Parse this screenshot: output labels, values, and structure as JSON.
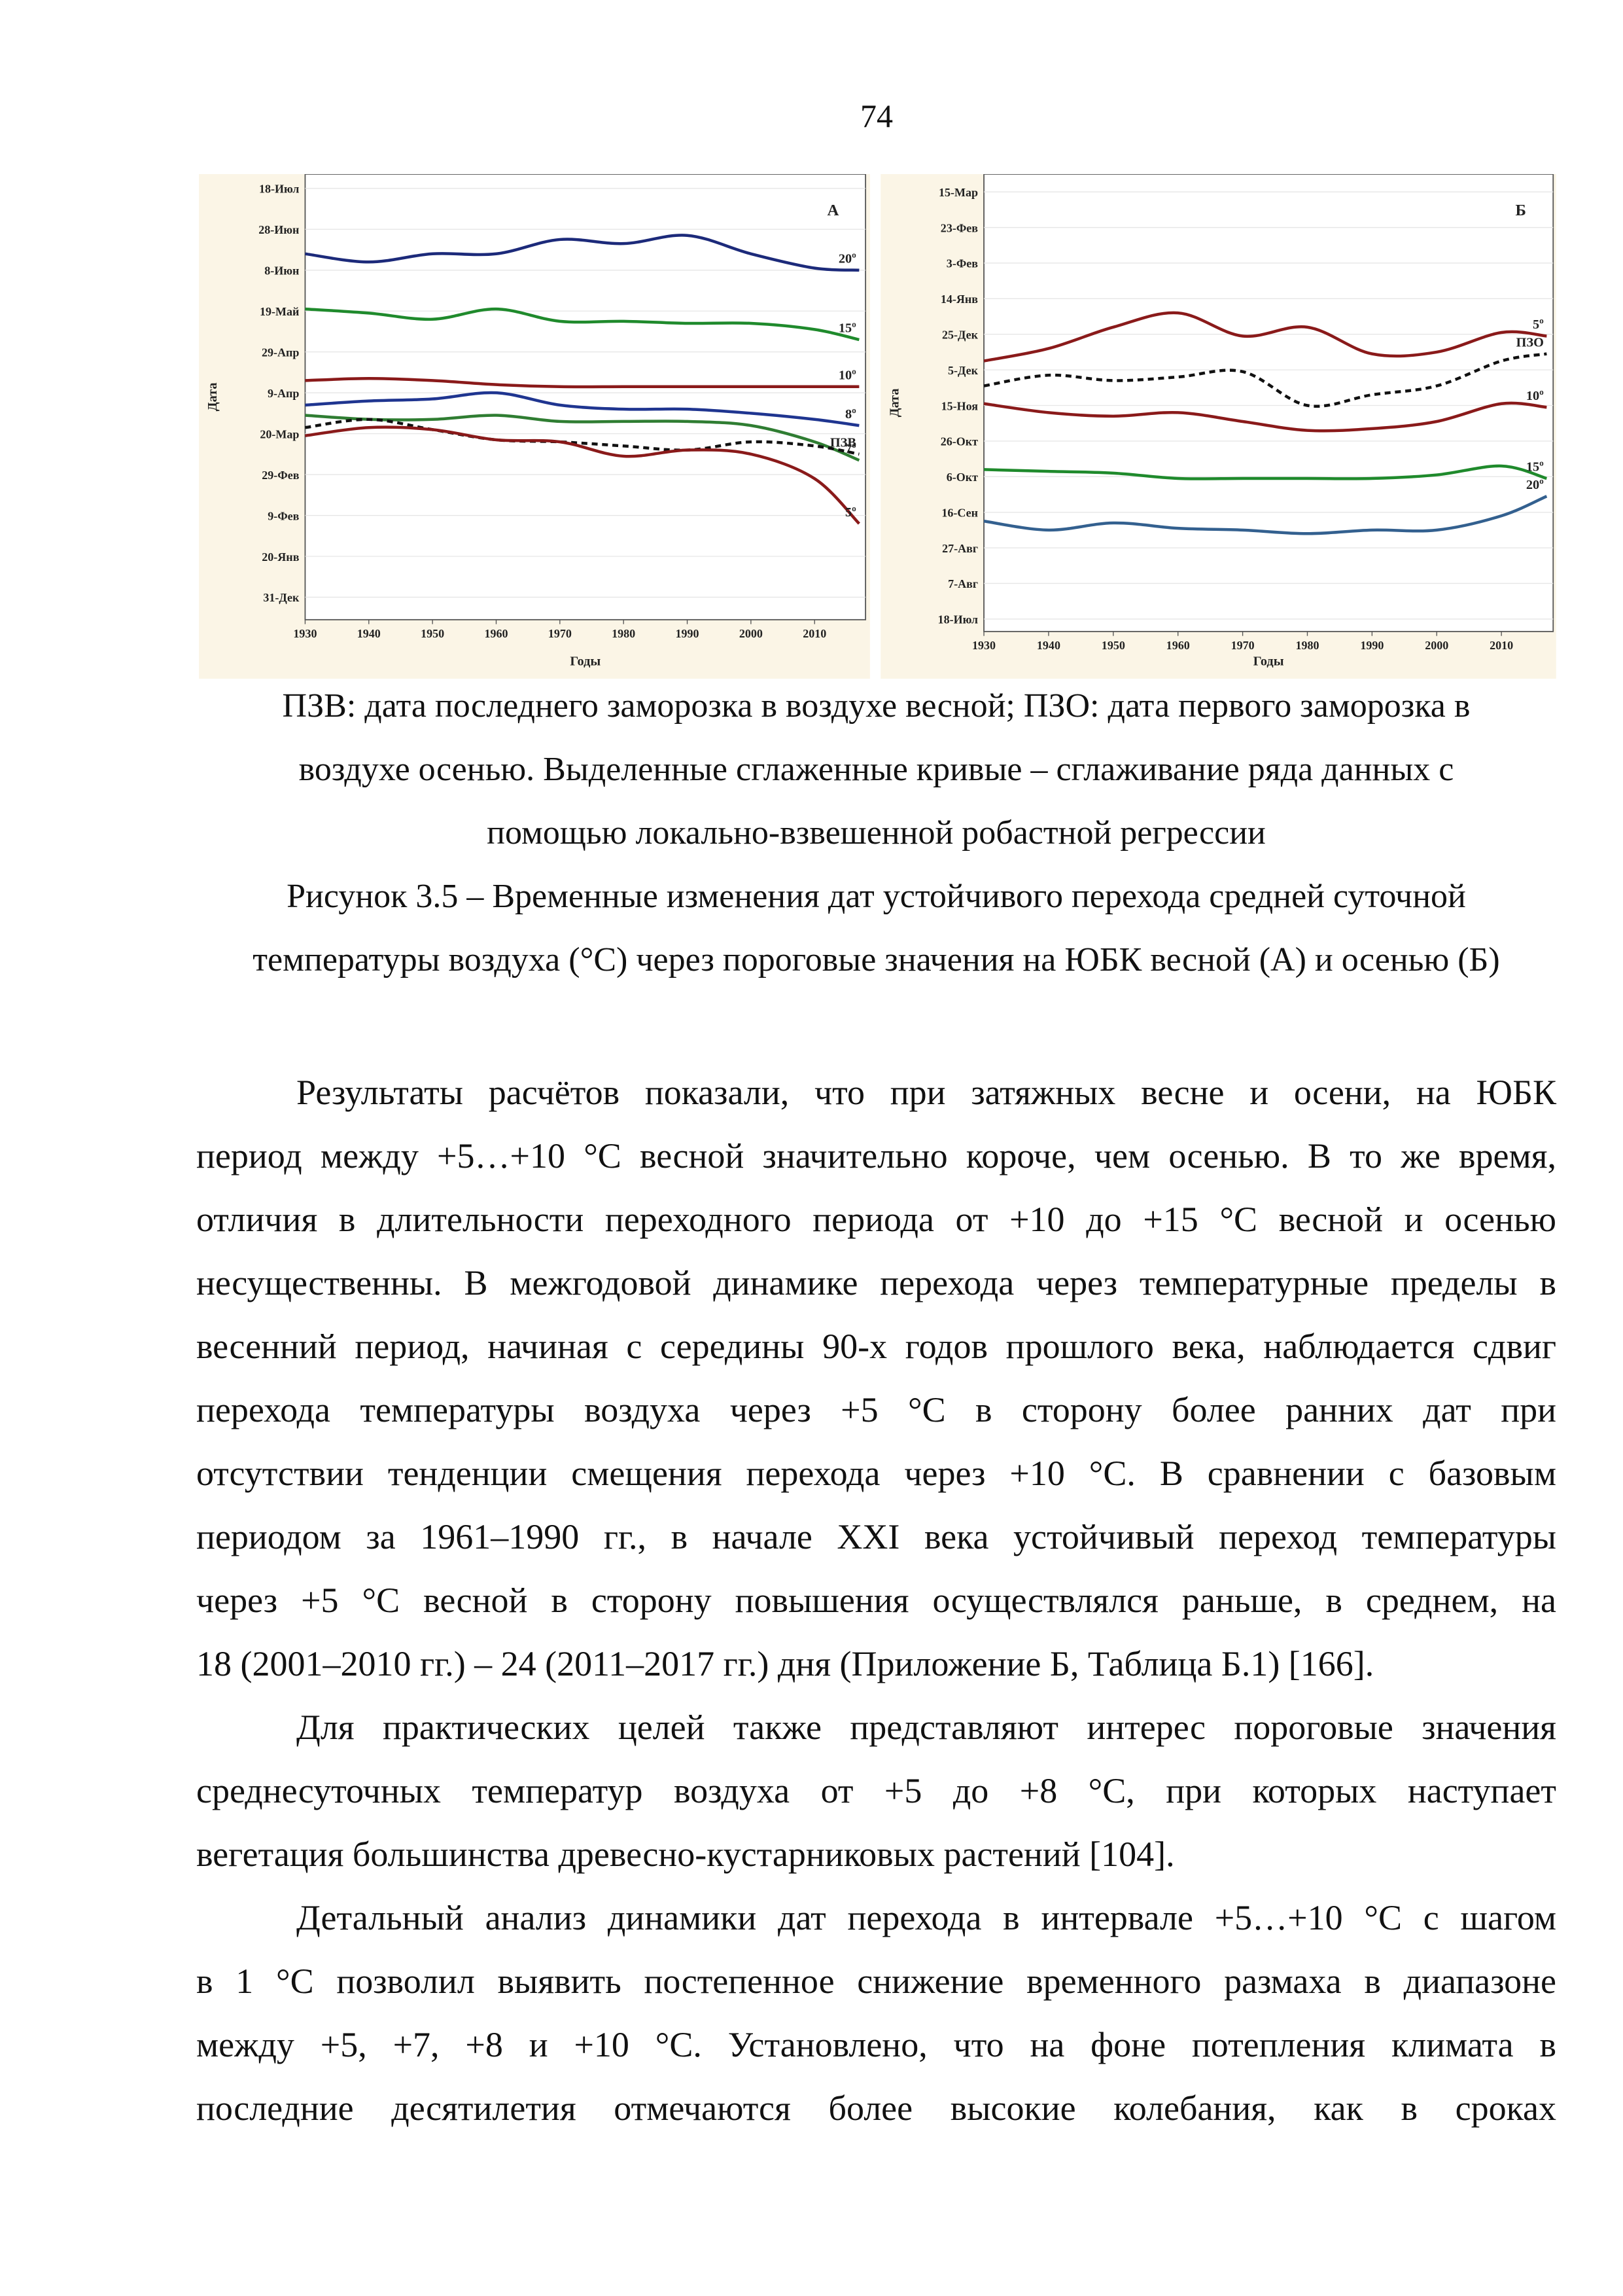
{
  "page_number": "74",
  "chart_data": [
    {
      "type": "line",
      "panel_label": "А",
      "ylabel": "Дата",
      "xlabel": "Годы",
      "x": [
        1930,
        1940,
        1950,
        1960,
        1970,
        1980,
        1990,
        2000,
        2010,
        2017
      ],
      "xlim": [
        1930,
        2018
      ],
      "xticks": [
        1930,
        1940,
        1950,
        1960,
        1970,
        1980,
        1990,
        2000,
        2010
      ],
      "ylim": [
        -11,
        207
      ],
      "yticks": [
        {
          "value": 0,
          "label": "31-Дек"
        },
        {
          "value": 20,
          "label": "20-Янв"
        },
        {
          "value": 40,
          "label": "9-Фев"
        },
        {
          "value": 60,
          "label": "29-Фев"
        },
        {
          "value": 80,
          "label": "20-Мар"
        },
        {
          "value": 100,
          "label": "9-Апр"
        },
        {
          "value": 120,
          "label": "29-Апр"
        },
        {
          "value": 140,
          "label": "19-Май"
        },
        {
          "value": 160,
          "label": "8-Июн"
        },
        {
          "value": 180,
          "label": "28-Июн"
        },
        {
          "value": 200,
          "label": "18-Июл"
        }
      ],
      "grid": true,
      "series": [
        {
          "name": "20º",
          "color": "#1c2a7a",
          "dashed": false,
          "values": [
            168,
            164,
            168,
            168,
            175,
            173,
            177,
            168,
            161,
            160
          ]
        },
        {
          "name": "15º",
          "color": "#1f8a2c",
          "dashed": false,
          "values": [
            141,
            139,
            136,
            141,
            135,
            135,
            134,
            134,
            131,
            126
          ]
        },
        {
          "name": "10º",
          "color": "#8a1a1a",
          "dashed": false,
          "values": [
            106,
            107,
            106,
            104,
            103,
            103,
            103,
            103,
            103,
            103
          ]
        },
        {
          "name": "8º",
          "color": "#1f3590",
          "dashed": false,
          "values": [
            94,
            96,
            97,
            100,
            94,
            92,
            92,
            90,
            87,
            84
          ]
        },
        {
          "name": "7º",
          "color": "#2f7d32",
          "dashed": false,
          "values": [
            89,
            87,
            87,
            89,
            86,
            86,
            86,
            84,
            76,
            67
          ]
        },
        {
          "name": "ПЗВ",
          "color": "#111111",
          "dashed": true,
          "values": [
            83,
            87,
            82,
            77,
            76,
            74,
            72,
            76,
            74,
            70
          ]
        },
        {
          "name": "5º",
          "color": "#8a1a1a",
          "dashed": false,
          "values": [
            79,
            83,
            82,
            77,
            76,
            69,
            72,
            70,
            58,
            36
          ]
        }
      ]
    },
    {
      "type": "line",
      "panel_label": "Б",
      "ylabel": "Дата",
      "xlabel": "Годы",
      "x": [
        1930,
        1940,
        1950,
        1960,
        1970,
        1980,
        1990,
        2000,
        2010,
        2017
      ],
      "xlim": [
        1930,
        2018
      ],
      "xticks": [
        1930,
        1940,
        1950,
        1960,
        1970,
        1980,
        1990,
        2000,
        2010
      ],
      "ylim": [
        -7,
        250
      ],
      "yticks": [
        {
          "value": 0,
          "label": "18-Июл"
        },
        {
          "value": 20,
          "label": "7-Авг"
        },
        {
          "value": 40,
          "label": "27-Авг"
        },
        {
          "value": 60,
          "label": "16-Сен"
        },
        {
          "value": 80,
          "label": "6-Окт"
        },
        {
          "value": 100,
          "label": "26-Окт"
        },
        {
          "value": 120,
          "label": "15-Ноя"
        },
        {
          "value": 140,
          "label": "5-Дек"
        },
        {
          "value": 160,
          "label": "25-Дек"
        },
        {
          "value": 180,
          "label": "14-Янв"
        },
        {
          "value": 200,
          "label": "3-Фев"
        },
        {
          "value": 220,
          "label": "23-Фев"
        },
        {
          "value": 240,
          "label": "15-Мар"
        }
      ],
      "grid": true,
      "series": [
        {
          "name": "5º",
          "color": "#8a1a1a",
          "dashed": false,
          "values": [
            145,
            152,
            164,
            172,
            159,
            164,
            149,
            150,
            161,
            159
          ]
        },
        {
          "name": "ПЗО",
          "color": "#111111",
          "dashed": true,
          "values": [
            131,
            137,
            134,
            136,
            139,
            120,
            126,
            131,
            145,
            149
          ]
        },
        {
          "name": "10º",
          "color": "#8a1a1a",
          "dashed": false,
          "values": [
            121,
            116,
            114,
            116,
            111,
            106,
            107,
            111,
            121,
            119
          ]
        },
        {
          "name": "15º",
          "color": "#1f8a2c",
          "dashed": false,
          "values": [
            84,
            83,
            82,
            79,
            79,
            79,
            79,
            81,
            86,
            79
          ]
        },
        {
          "name": "20º",
          "color": "#33608f",
          "dashed": false,
          "values": [
            55,
            50,
            54,
            51,
            50,
            48,
            50,
            50,
            58,
            69
          ]
        }
      ]
    }
  ],
  "figure_note": [
    "ПЗВ: дата последнего заморозка в воздухе весной; ПЗО: дата первого заморозка в",
    "воздухе осенью. Выделенные сглаженные кривые – сглаживание ряда данных с",
    "помощью локально-взвешенной робастной регрессии"
  ],
  "figure_caption": [
    "Рисунок 3.5 – Временные изменения дат устойчивого перехода средней суточной",
    "температуры воздуха (°С) через пороговые значения на ЮБК весной (А) и осенью (Б)"
  ],
  "body": {
    "paragraphs": [
      [
        "Результаты расчётов показали, что при затяжных весне и осени, на ЮБК",
        "период между +5…+10 °С весной значительно короче, чем осенью. В то же время,",
        "отличия в длительности переходного периода от +10 до +15 °С весной и осенью",
        "несущественны. В межгодовой динамике перехода через температурные пределы в",
        "весенний период, начиная с середины 90-х годов прошлого века, наблюдается сдвиг",
        "перехода температуры воздуха через +5 °С в сторону более ранних дат при",
        "отсутствии тенденции смещения перехода через +10 °С. В сравнении с базовым",
        "периодом за 1961–1990 гг., в начале XXI века устойчивый переход температуры",
        "через +5 °С весной в сторону повышения осуществлялся раньше, в среднем, на",
        "18 (2001–2010 гг.) – 24 (2011–2017 гг.) дня (Приложение Б, Таблица Б.1) [166]."
      ],
      [
        "Для практических целей также представляют интерес пороговые значения",
        "среднесуточных температур воздуха от +5 до +8 °С, при которых наступает",
        "вегетация большинства древесно-кустарниковых растений [104]."
      ],
      [
        "Детальный анализ динамики дат перехода в интервале +5…+10 °С с шагом",
        "в 1 °С позволил выявить постепенное снижение временного размаха в диапазоне",
        "между +5, +7, +8 и +10 °С. Установлено, что на фоне потепления климата в",
        "последние десятилетия отмечаются более высокие колебания, как в сроках"
      ]
    ]
  }
}
